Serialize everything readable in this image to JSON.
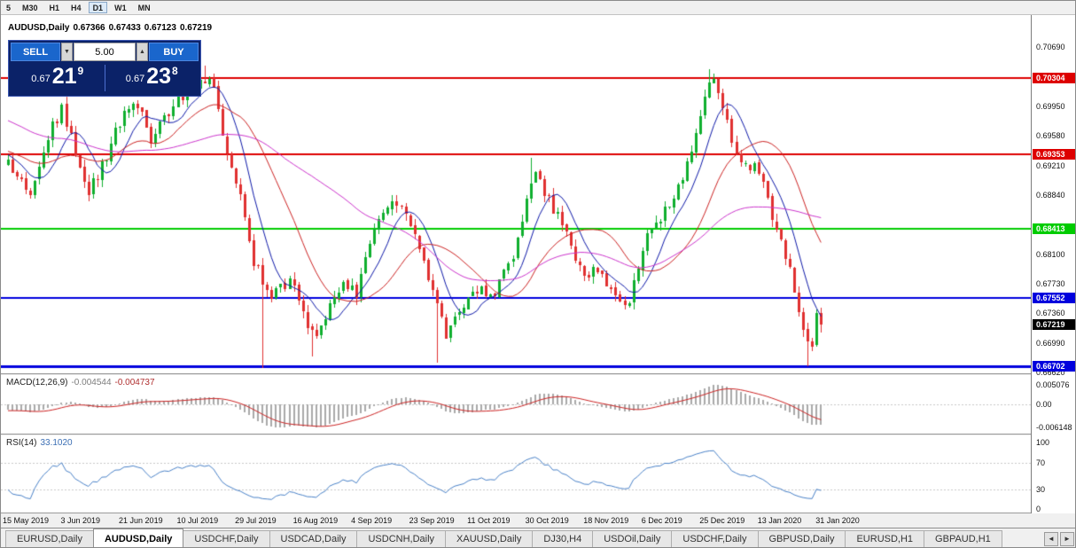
{
  "toolbar": {
    "timeframes": [
      {
        "label": "5",
        "active": false
      },
      {
        "label": "M30",
        "active": false
      },
      {
        "label": "H1",
        "active": false
      },
      {
        "label": "H4",
        "active": false
      },
      {
        "label": "D1",
        "active": true
      },
      {
        "label": "W1",
        "active": false
      },
      {
        "label": "MN",
        "active": false
      }
    ]
  },
  "chart": {
    "title": {
      "symbol": "AUDUSD,Daily",
      "open": "0.67366",
      "high": "0.67433",
      "low": "0.67123",
      "close": "0.67219"
    }
  },
  "trade_panel": {
    "sell_label": "SELL",
    "buy_label": "BUY",
    "volume": "5.00",
    "sell_price": {
      "prefix": "0.67",
      "big": "21",
      "sup": "9"
    },
    "buy_price": {
      "prefix": "0.67",
      "big": "23",
      "sup": "8"
    }
  },
  "indicators": {
    "macd": {
      "name": "MACD(12,26,9)",
      "value_main": "-0.004544",
      "value_signal": "-0.004737",
      "axis_labels": [
        "0.005076",
        "0.00",
        "-0.006148"
      ],
      "axis_values": [
        0.005076,
        0,
        -0.006148
      ]
    },
    "rsi": {
      "name": "RSI(14)",
      "value": "33.1020",
      "axis_labels": [
        "100",
        "70",
        "30",
        "0"
      ],
      "axis_values": [
        100,
        70,
        30,
        0
      ],
      "levels": [
        30,
        70
      ]
    }
  },
  "price_axis": {
    "ticks": [
      0.7069,
      0.7032,
      0.6995,
      0.6958,
      0.6921,
      0.6884,
      0.6847,
      0.681,
      0.6773,
      0.6736,
      0.6699,
      0.6662
    ],
    "range": {
      "min": 0.6661,
      "max": 0.7109
    }
  },
  "chart_data": {
    "type": "candlestick",
    "symbol": "AUDUSD",
    "timeframe": "Daily",
    "last_ohlc": {
      "open": 0.67366,
      "high": 0.67433,
      "low": 0.67123,
      "close": 0.67219
    },
    "horizontal_lines": [
      {
        "price": 0.70304,
        "label": "0.70304",
        "color": "#dd0000",
        "width": 2
      },
      {
        "price": 0.69353,
        "label": "0.69353",
        "color": "#dd0000",
        "width": 2
      },
      {
        "price": 0.68413,
        "label": "0.68413",
        "color": "#00cc00",
        "width": 2
      },
      {
        "price": 0.67552,
        "label": "0.67552",
        "color": "#0000dd",
        "width": 2
      },
      {
        "price": 0.66702,
        "label": "0.66702",
        "color": "#0000dd",
        "width": 3
      }
    ],
    "current_price": {
      "value": 0.67219,
      "label": "0.67219",
      "label_bg": "#000000"
    },
    "x_labels": [
      "15 May 2019",
      "3 Jun 2019",
      "21 Jun 2019",
      "10 Jul 2019",
      "29 Jul 2019",
      "16 Aug 2019",
      "4 Sep 2019",
      "23 Sep 2019",
      "11 Oct 2019",
      "30 Oct 2019",
      "18 Nov 2019",
      "6 Dec 2019",
      "25 Dec 2019",
      "13 Jan 2020",
      "31 Jan 2020"
    ],
    "bars_per_label": 13,
    "num_candles": 183,
    "price_anchors": [
      [
        -55,
        0.706
      ],
      [
        -40,
        0.701
      ],
      [
        -25,
        0.6985
      ],
      [
        -12,
        0.693
      ],
      [
        -6,
        0.695
      ],
      [
        0,
        0.6925
      ],
      [
        3,
        0.69
      ],
      [
        5,
        0.6883
      ],
      [
        9,
        0.696
      ],
      [
        12,
        0.699
      ],
      [
        15,
        0.694
      ],
      [
        18,
        0.6885
      ],
      [
        22,
        0.6935
      ],
      [
        26,
        0.6985
      ],
      [
        29,
        0.6995
      ],
      [
        32,
        0.6955
      ],
      [
        36,
        0.699
      ],
      [
        40,
        0.701
      ],
      [
        44,
        0.703
      ],
      [
        46,
        0.702
      ],
      [
        49,
        0.693
      ],
      [
        53,
        0.686
      ],
      [
        55,
        0.68
      ],
      [
        57,
        0.678
      ],
      [
        59,
        0.676
      ],
      [
        61,
        0.6775
      ],
      [
        64,
        0.677
      ],
      [
        67,
        0.6715
      ],
      [
        69,
        0.6705
      ],
      [
        72,
        0.6745
      ],
      [
        75,
        0.677
      ],
      [
        78,
        0.676
      ],
      [
        80,
        0.681
      ],
      [
        83,
        0.6855
      ],
      [
        86,
        0.687
      ],
      [
        88,
        0.6875
      ],
      [
        91,
        0.684
      ],
      [
        93,
        0.68
      ],
      [
        96,
        0.6745
      ],
      [
        98,
        0.671
      ],
      [
        100,
        0.6735
      ],
      [
        103,
        0.675
      ],
      [
        105,
        0.6765
      ],
      [
        108,
        0.6755
      ],
      [
        110,
        0.6775
      ],
      [
        113,
        0.68
      ],
      [
        115,
        0.6855
      ],
      [
        117,
        0.6905
      ],
      [
        118,
        0.692
      ],
      [
        120,
        0.689
      ],
      [
        123,
        0.6855
      ],
      [
        126,
        0.682
      ],
      [
        129,
        0.679
      ],
      [
        132,
        0.6785
      ],
      [
        135,
        0.677
      ],
      [
        137,
        0.6745
      ],
      [
        139,
        0.6755
      ],
      [
        141,
        0.6785
      ],
      [
        143,
        0.684
      ],
      [
        146,
        0.6855
      ],
      [
        149,
        0.688
      ],
      [
        152,
        0.692
      ],
      [
        155,
        0.6985
      ],
      [
        157,
        0.7025
      ],
      [
        158,
        0.703
      ],
      [
        160,
        0.699
      ],
      [
        162,
        0.695
      ],
      [
        164,
        0.6925
      ],
      [
        167,
        0.692
      ],
      [
        169,
        0.69
      ],
      [
        171,
        0.6855
      ],
      [
        173,
        0.683
      ],
      [
        175,
        0.679
      ],
      [
        177,
        0.6735
      ],
      [
        179,
        0.6695
      ],
      [
        180,
        0.67
      ],
      [
        181,
        0.67366
      ],
      [
        182,
        0.67219
      ]
    ],
    "wick_overrides": {
      "12": {
        "h": 0.6999
      },
      "44": {
        "h": 0.7046
      },
      "57": {
        "l": 0.6668
      },
      "68": {
        "l": 0.6682
      },
      "96": {
        "l": 0.6674
      },
      "117": {
        "h": 0.6931
      },
      "157": {
        "h": 0.7041
      },
      "179": {
        "l": 0.667
      }
    },
    "moving_averages": [
      {
        "period": 8,
        "color": "#0d18a8"
      },
      {
        "period": 20,
        "color": "#cc2222"
      },
      {
        "period": 50,
        "color": "#cc33cc"
      }
    ]
  },
  "tabs": {
    "items": [
      {
        "label": "EURUSD,Daily",
        "active": false
      },
      {
        "label": "AUDUSD,Daily",
        "active": true
      },
      {
        "label": "USDCHF,Daily",
        "active": false
      },
      {
        "label": "USDCAD,Daily",
        "active": false
      },
      {
        "label": "USDCNH,Daily",
        "active": false
      },
      {
        "label": "XAUUSD,Daily",
        "active": false
      },
      {
        "label": "DJ30,H4",
        "active": false
      },
      {
        "label": "USDOil,Daily",
        "active": false
      },
      {
        "label": "USDCHF,Daily",
        "active": false
      },
      {
        "label": "GBPUSD,Daily",
        "active": false
      },
      {
        "label": "EURUSD,H1",
        "active": false
      },
      {
        "label": "GBPAUD,H1",
        "active": false
      }
    ],
    "scroll_left": "◄",
    "scroll_right": "►"
  },
  "colors": {
    "bull": "#0faf2e",
    "bear": "#e03030",
    "macd_hist": "#a9a9a9",
    "macd_signal": "#cc2222",
    "rsi_line": "#4a82c8"
  }
}
